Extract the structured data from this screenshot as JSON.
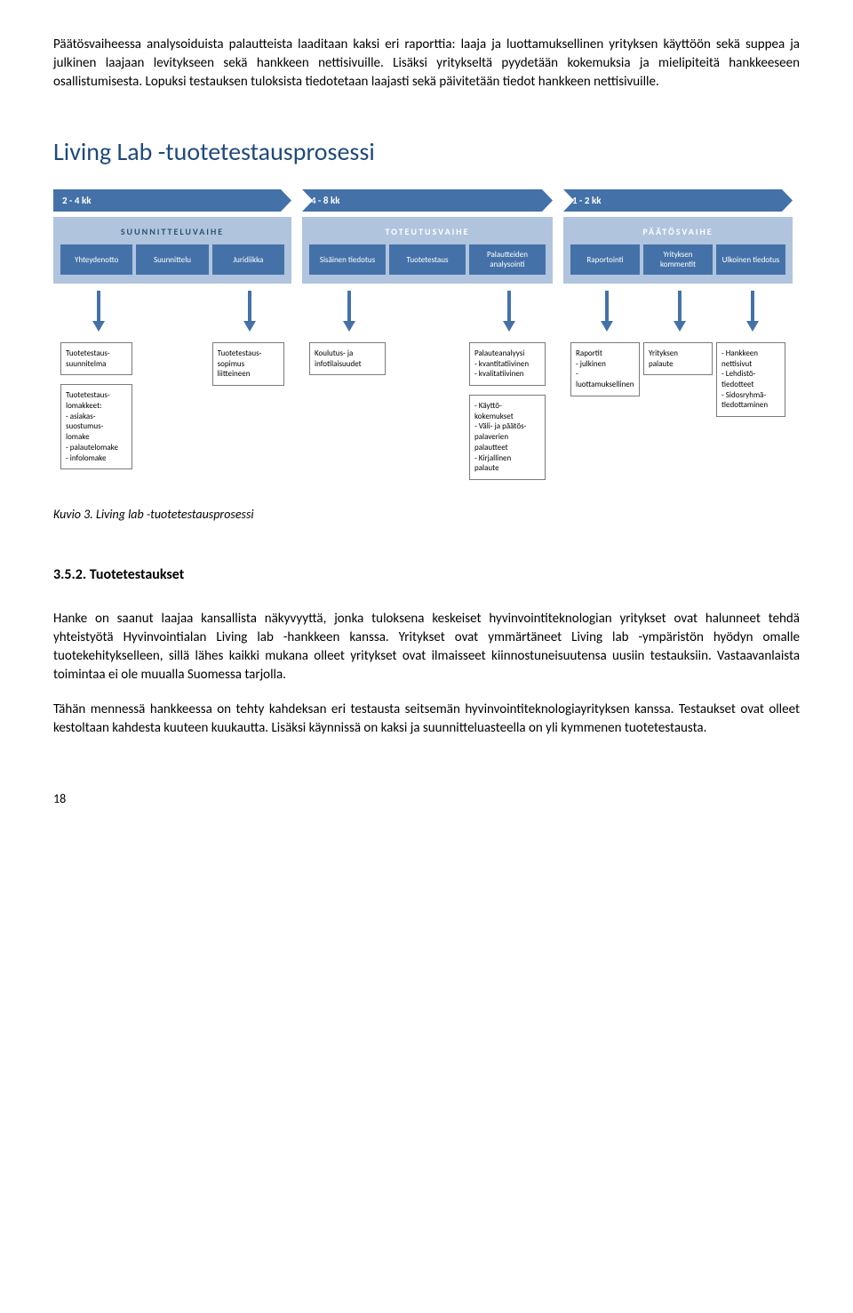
{
  "para1": "Päätösvaiheessa analysoiduista palautteista laaditaan kaksi eri raporttia: laaja ja luottamuksellinen yrityksen käyttöön sekä suppea ja julkinen laajaan levitykseen sekä hankkeen nettisivuille. Lisäksi yritykseltä pyydetään kokemuksia ja mielipiteitä hankkeeseen osallistumisesta. Lopuksi testauksen tuloksista tiedotetaan laajasti sekä päivitetään tiedot hankkeen nettisivuille.",
  "diagram": {
    "title": "Living Lab -tuotetestausprosessi",
    "title_color": "#1f497d",
    "timeline": [
      {
        "label": "2 - 4 kk",
        "w": "w1"
      },
      {
        "label": "4 - 8 kk",
        "w": "w2"
      },
      {
        "label": "1 - 2 kk",
        "w": "w3"
      }
    ],
    "phases": [
      {
        "title": "SUUNNITTELUVAIHE",
        "title_class": "dark",
        "w": "w1",
        "steps": [
          "Yhteydenotto",
          "Suunnittelu",
          "Juridiikka"
        ]
      },
      {
        "title": "TOTEUTUSVAIHE",
        "title_class": "",
        "w": "w2",
        "steps": [
          "Sisäinen tiedotus",
          "Tuotetestaus",
          "Palautteiden analysointi"
        ]
      },
      {
        "title": "PÄÄTÖSVAIHE",
        "title_class": "",
        "w": "w3",
        "steps": [
          "Raportointi",
          "Yrityksen kommentit",
          "Ulkoinen tiedotus"
        ]
      }
    ],
    "details": [
      {
        "w": "w1",
        "cols": [
          [
            "Tuotetestaus-\nsuunnitelma",
            "Tuotetestaus-\nlomakkeet:\n- asiakas-\nsuostumus-\nlomake\n- palautelomake\n- infolomake"
          ],
          [],
          [
            "Tuotetestaus-\nsopimus\nliitteineen"
          ]
        ]
      },
      {
        "w": "w2",
        "cols": [
          [
            "Koulutus- ja\ninfotilaisuudet"
          ],
          [],
          [
            "Palauteanalyysi\n- kvantitatiivinen\n- kvalitatiivinen",
            "- Käyttö-\nkokemukset\n- Väli- ja päätös-\npalaverien\npalautteet\n- Kirjallinen\npalaute"
          ]
        ]
      },
      {
        "w": "w3",
        "cols": [
          [
            "Raportit\n- julkinen\n- luottamuksellinen"
          ],
          [
            "Yrityksen\npalaute"
          ],
          [
            "- Hankkeen\nnettisivut\n- Lehdistö-\ntiedotteet\n- Sidosryhmä-\ntiedottaminen"
          ]
        ]
      }
    ],
    "colors": {
      "chevron_bg": "#4472a8",
      "phase_bg": "#b0c4de",
      "step_bg": "#4472a8",
      "arrow": "#4472a8",
      "detail_border": "#7a7a7a"
    }
  },
  "caption": "Kuvio 3. Living lab -tuotetestausprosessi",
  "section": {
    "number": "3.5.2.",
    "title": "Tuotetestaukset"
  },
  "para2": "Hanke on saanut laajaa kansallista näkyvyyttä, jonka tuloksena keskeiset hyvinvointiteknologian yritykset ovat halunneet tehdä yhteistyötä Hyvinvointialan Living lab -hankkeen kanssa. Yritykset ovat ymmärtäneet Living lab -ympäristön hyödyn omalle tuotekehitykselleen, sillä lähes kaikki mukana olleet yritykset ovat ilmaisseet kiinnostuneisuutensa uusiin testauksiin. Vastaavanlaista toimintaa ei ole muualla Suomessa tarjolla.",
  "para3": "Tähän mennessä hankkeessa on tehty kahdeksan eri testausta seitsemän hyvinvointiteknologiayrityksen kanssa. Testaukset ovat olleet kestoltaan kahdesta kuuteen kuukautta. Lisäksi käynnissä on kaksi ja suunnitteluasteella on yli kymmenen tuotetestausta.",
  "page_number": "18"
}
